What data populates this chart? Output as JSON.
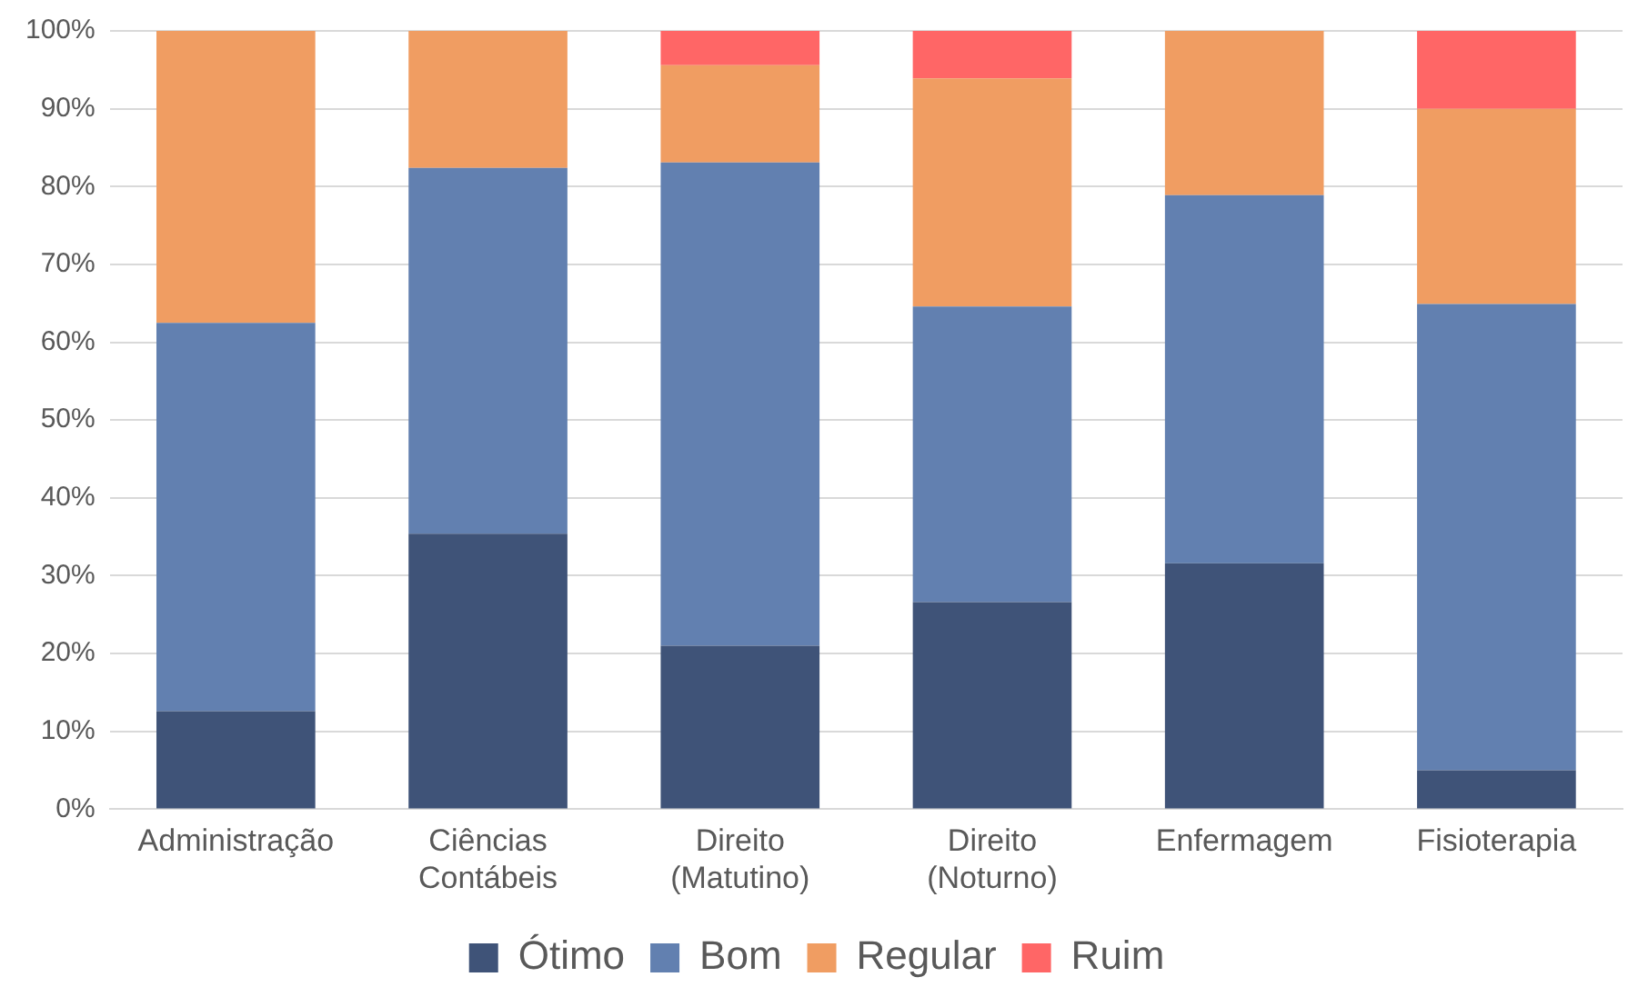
{
  "chart_data": {
    "type": "bar",
    "stacked": true,
    "categories": [
      "Administração",
      "Ciências Contábeis",
      "Direito (Matutino)",
      "Direito (Noturno)",
      "Enfermagem",
      "Fisioterapia"
    ],
    "series": [
      {
        "name": "Ótimo",
        "color": "#3f5378",
        "values": [
          12.6,
          35.4,
          21.0,
          26.6,
          31.6,
          5.0
        ]
      },
      {
        "name": "Bom",
        "color": "#6280b0",
        "values": [
          49.9,
          47.0,
          62.1,
          38.0,
          47.3,
          59.9
        ]
      },
      {
        "name": "Regular",
        "color": "#f09d62",
        "values": [
          37.5,
          17.6,
          12.5,
          29.3,
          21.1,
          25.1
        ]
      },
      {
        "name": "Ruim",
        "color": "#ff6666",
        "values": [
          0,
          0,
          4.4,
          6.1,
          0,
          10.0
        ]
      }
    ],
    "ylim": [
      0,
      100
    ],
    "yticks": [
      {
        "value": 0,
        "label": "0%"
      },
      {
        "value": 10,
        "label": "10%"
      },
      {
        "value": 20,
        "label": "20%"
      },
      {
        "value": 30,
        "label": "30%"
      },
      {
        "value": 40,
        "label": "40%"
      },
      {
        "value": 50,
        "label": "50%"
      },
      {
        "value": 60,
        "label": "60%"
      },
      {
        "value": 70,
        "label": "70%"
      },
      {
        "value": 80,
        "label": "80%"
      },
      {
        "value": 90,
        "label": "90%"
      },
      {
        "value": 100,
        "label": "100%"
      }
    ],
    "grid": "y",
    "legend": "bottom"
  }
}
